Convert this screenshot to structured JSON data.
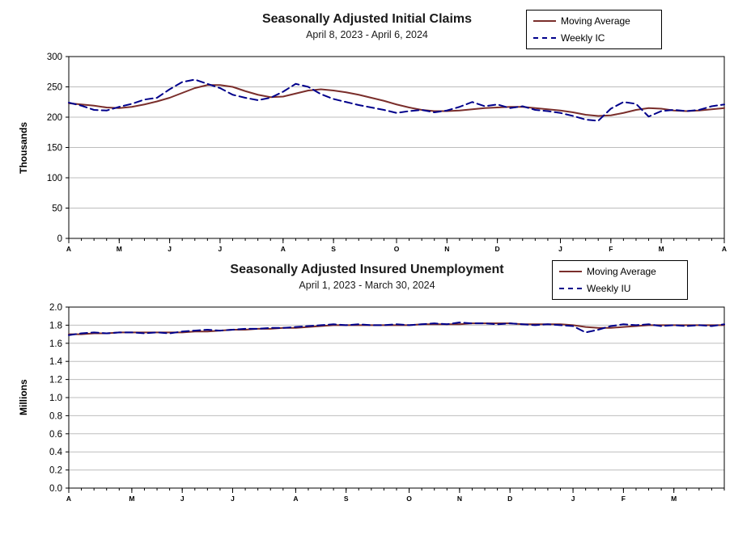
{
  "page": {
    "background": "#ffffff"
  },
  "chart_data": [
    {
      "type": "line",
      "title": "Seasonally Adjusted Initial Claims",
      "subtitle": "April 8, 2023 - April 6, 2024",
      "ylabel": "Thousands",
      "ylim": [
        0,
        300
      ],
      "yticks": [
        0,
        50,
        100,
        150,
        200,
        250,
        300
      ],
      "ytick_labels": [
        "0",
        "50",
        "100",
        "150",
        "200",
        "250",
        "300"
      ],
      "xtick_labels": [
        "A",
        "M",
        "J",
        "J",
        "A",
        "S",
        "O",
        "N",
        "D",
        "J",
        "F",
        "M",
        "A"
      ],
      "xtick_indices": [
        0,
        4,
        8,
        12,
        17,
        21,
        26,
        30,
        34,
        39,
        43,
        47,
        52
      ],
      "grid": true,
      "legend_position": "top-right",
      "series": [
        {
          "name": "Moving Average",
          "style": "solid",
          "color": "#7a2e2b",
          "values": [
            223,
            221,
            219,
            216,
            215,
            217,
            221,
            226,
            232,
            240,
            248,
            253,
            253,
            250,
            243,
            237,
            233,
            234,
            239,
            244,
            246,
            244,
            241,
            237,
            232,
            227,
            221,
            216,
            212,
            210,
            210,
            211,
            213,
            215,
            216,
            217,
            217,
            215,
            213,
            211,
            208,
            204,
            202,
            203,
            207,
            212,
            215,
            214,
            211,
            210,
            211,
            213,
            215
          ]
        },
        {
          "name": "Weekly IC",
          "style": "dashed",
          "color": "#00008b",
          "values": [
            224,
            219,
            212,
            211,
            217,
            222,
            229,
            232,
            246,
            258,
            262,
            255,
            248,
            237,
            232,
            228,
            232,
            242,
            255,
            250,
            238,
            230,
            225,
            220,
            216,
            212,
            207,
            210,
            212,
            208,
            211,
            217,
            225,
            218,
            221,
            215,
            218,
            212,
            210,
            207,
            202,
            196,
            194,
            214,
            225,
            222,
            201,
            210,
            212,
            210,
            212,
            218,
            221
          ]
        }
      ]
    },
    {
      "type": "line",
      "title": "Seasonally Adjusted Insured Unemployment",
      "subtitle": "April 1, 2023 - March 30, 2024",
      "ylabel": "Millions",
      "ylim": [
        0,
        2.0
      ],
      "yticks": [
        0,
        0.2,
        0.4,
        0.6,
        0.8,
        1.0,
        1.2,
        1.4,
        1.6,
        1.8,
        2.0
      ],
      "ytick_labels": [
        "0.0",
        "0.2",
        "0.4",
        "0.6",
        "0.8",
        "1.0",
        "1.2",
        "1.4",
        "1.6",
        "1.8",
        "2.0"
      ],
      "xtick_labels": [
        "A",
        "M",
        "J",
        "J",
        "A",
        "S",
        "O",
        "N",
        "D",
        "J",
        "F",
        "M"
      ],
      "xtick_indices": [
        0,
        5,
        9,
        13,
        18,
        22,
        27,
        31,
        35,
        40,
        44,
        48
      ],
      "grid": true,
      "legend_position": "top-right",
      "series": [
        {
          "name": "Moving Average",
          "style": "solid",
          "color": "#7a2e2b",
          "values": [
            1.7,
            1.7,
            1.71,
            1.71,
            1.72,
            1.72,
            1.72,
            1.72,
            1.72,
            1.72,
            1.73,
            1.73,
            1.74,
            1.75,
            1.75,
            1.76,
            1.76,
            1.77,
            1.77,
            1.78,
            1.79,
            1.8,
            1.8,
            1.8,
            1.8,
            1.8,
            1.8,
            1.8,
            1.81,
            1.81,
            1.81,
            1.81,
            1.82,
            1.82,
            1.82,
            1.82,
            1.81,
            1.81,
            1.81,
            1.81,
            1.8,
            1.78,
            1.77,
            1.77,
            1.78,
            1.79,
            1.8,
            1.8,
            1.8,
            1.8,
            1.8,
            1.8,
            1.8
          ]
        },
        {
          "name": "Weekly IU",
          "style": "dashed",
          "color": "#00008b",
          "values": [
            1.69,
            1.71,
            1.72,
            1.71,
            1.72,
            1.72,
            1.71,
            1.72,
            1.71,
            1.73,
            1.74,
            1.75,
            1.74,
            1.75,
            1.76,
            1.76,
            1.77,
            1.77,
            1.78,
            1.79,
            1.8,
            1.81,
            1.8,
            1.81,
            1.8,
            1.8,
            1.81,
            1.8,
            1.81,
            1.82,
            1.81,
            1.83,
            1.82,
            1.82,
            1.81,
            1.82,
            1.81,
            1.8,
            1.81,
            1.8,
            1.79,
            1.72,
            1.75,
            1.79,
            1.81,
            1.8,
            1.81,
            1.79,
            1.8,
            1.79,
            1.8,
            1.79,
            1.81
          ]
        }
      ]
    }
  ]
}
